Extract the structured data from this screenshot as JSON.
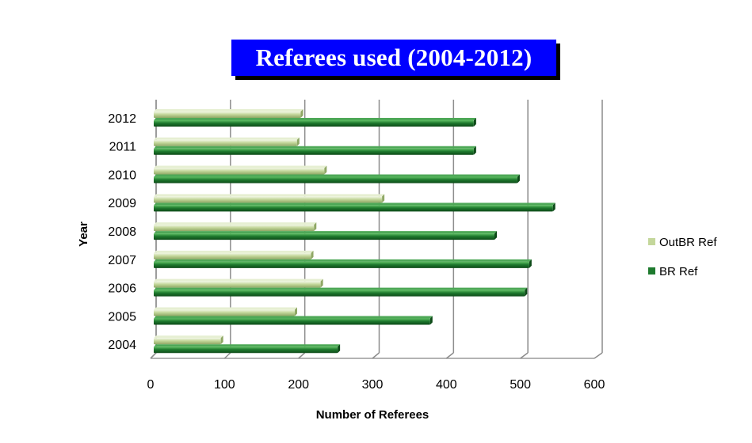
{
  "chart_data": {
    "type": "bar",
    "orientation": "horizontal",
    "title": "Referees used (2004-2012)",
    "xlabel": "Number of Referees",
    "ylabel": "Year",
    "categories": [
      "2004",
      "2005",
      "2006",
      "2007",
      "2008",
      "2009",
      "2010",
      "2011",
      "2012"
    ],
    "series": [
      {
        "name": "OutBR Ref",
        "color": "#c4d79b",
        "values": [
          95,
          195,
          230,
          217,
          221,
          313,
          235,
          198,
          203
        ]
      },
      {
        "name": "BR Ref",
        "color": "#1e7a2e",
        "values": [
          253,
          378,
          506,
          512,
          465,
          544,
          496,
          437,
          437
        ]
      }
    ],
    "xlim": [
      0,
      600
    ],
    "xticks": [
      0,
      100,
      200,
      300,
      400,
      500,
      600
    ],
    "grid": "vertical",
    "legend_position": "right"
  }
}
